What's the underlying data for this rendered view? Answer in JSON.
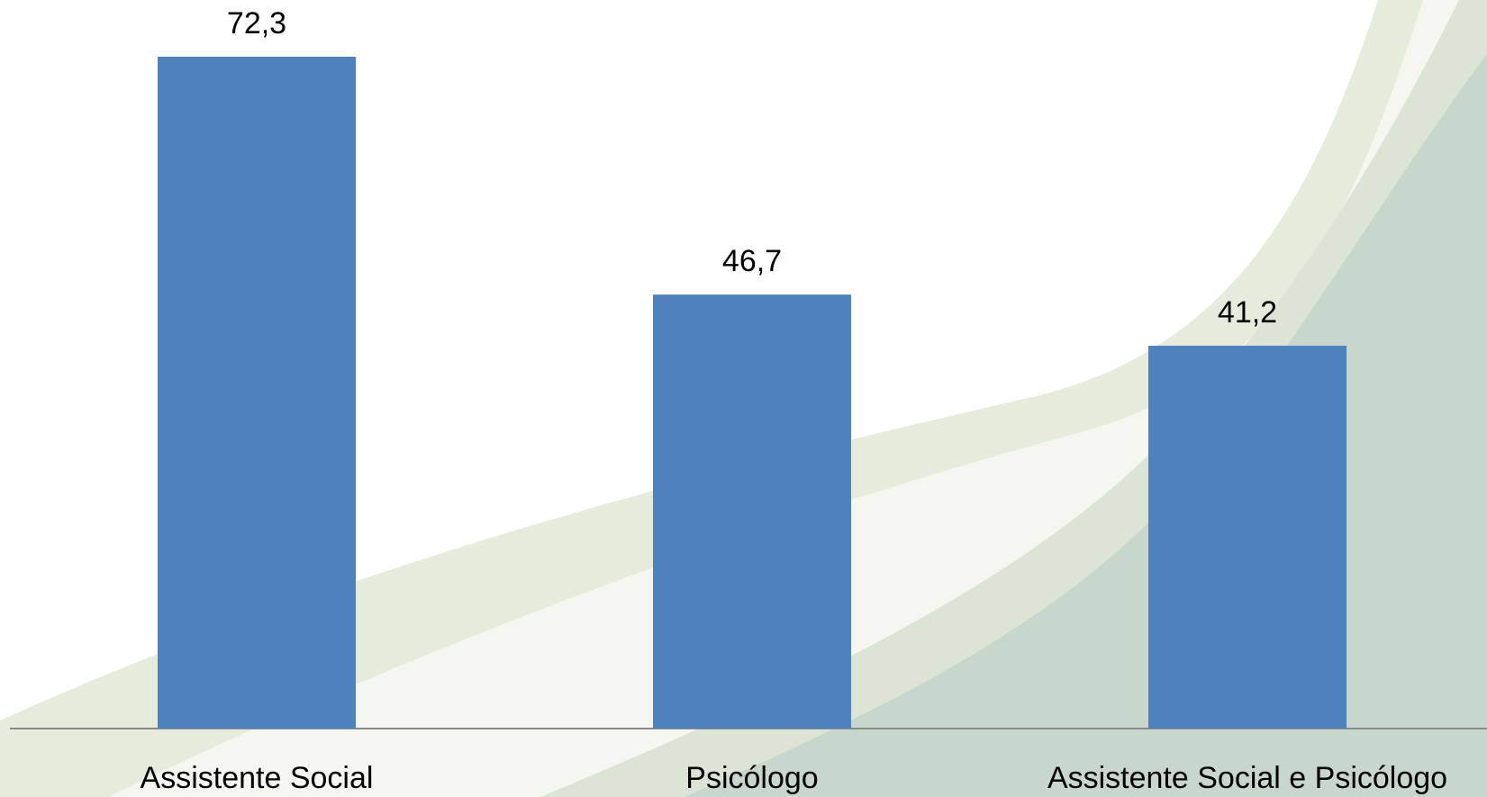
{
  "chart_data": {
    "type": "bar",
    "categories": [
      "Assistente Social",
      "Psicólogo",
      "Assistente Social e Psicólogo"
    ],
    "values": [
      72.3,
      46.7,
      41.2
    ],
    "value_labels": [
      "72,3",
      "46,7",
      "41,2"
    ],
    "color": "#4f81bd"
  }
}
